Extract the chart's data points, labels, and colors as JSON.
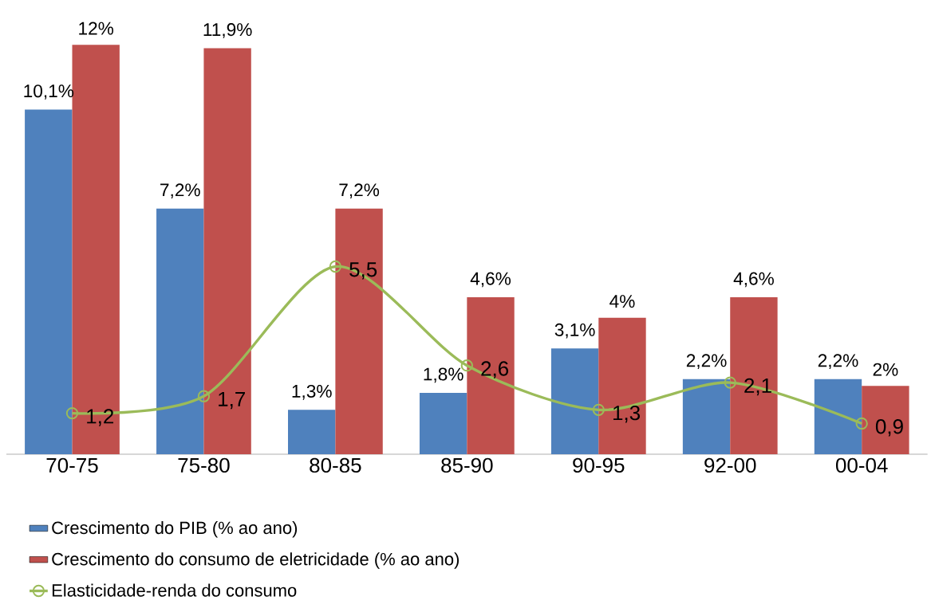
{
  "chart_data": {
    "type": "bar",
    "categories": [
      "70-75",
      "75-80",
      "80-85",
      "85-90",
      "90-95",
      "92-00",
      "00-04"
    ],
    "series": [
      {
        "name": "Crescimento do PIB (% ao ano)",
        "color": "#4f81bd",
        "values": [
          10.1,
          7.2,
          1.3,
          1.8,
          3.1,
          2.2,
          2.2
        ],
        "value_labels": [
          "10,1%",
          "7,2%",
          "1,3%",
          "1,8%",
          "3,1%",
          "2,2%",
          "2,2%"
        ]
      },
      {
        "name": "Crescimento do consumo de eletricidade (% ao ano)",
        "color": "#c0504d",
        "values": [
          12,
          11.9,
          7.2,
          4.6,
          4,
          4.6,
          2
        ],
        "value_labels": [
          "12%",
          "11,9%",
          "7,2%",
          "4,6%",
          "4%",
          "4,6%",
          "2%"
        ]
      },
      {
        "name": "Elasticidade-renda do consumo",
        "type": "line",
        "color": "#9bbb59",
        "marker": "circle",
        "values": [
          1.2,
          1.7,
          5.5,
          2.6,
          1.3,
          2.1,
          0.9
        ],
        "value_labels": [
          "1,2",
          "1,7",
          "5,5",
          "2,6",
          "1,3",
          "2,1",
          "0,9"
        ]
      }
    ],
    "tick_labels": "x",
    "legend": "bottom",
    "grid": false
  }
}
